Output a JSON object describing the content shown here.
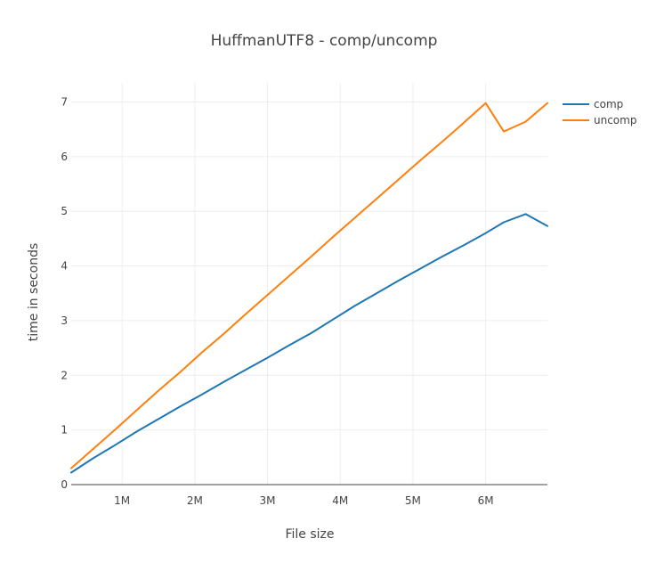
{
  "chart_data": {
    "type": "line",
    "title": "HuffmanUTF8 - comp/uncomp",
    "xlabel": "File size",
    "ylabel": "time in seconds",
    "xlim": [
      300000,
      6850000
    ],
    "ylim": [
      0,
      7.35
    ],
    "grid": true,
    "legend_position": "top-right",
    "x_ticks": [
      {
        "value": 1000000,
        "label": "1M"
      },
      {
        "value": 2000000,
        "label": "2M"
      },
      {
        "value": 3000000,
        "label": "3M"
      },
      {
        "value": 4000000,
        "label": "4M"
      },
      {
        "value": 5000000,
        "label": "5M"
      },
      {
        "value": 6000000,
        "label": "6M"
      }
    ],
    "y_ticks": [
      {
        "value": 0,
        "label": "0"
      },
      {
        "value": 1,
        "label": "1"
      },
      {
        "value": 2,
        "label": "2"
      },
      {
        "value": 3,
        "label": "3"
      },
      {
        "value": 4,
        "label": "4"
      },
      {
        "value": 5,
        "label": "5"
      },
      {
        "value": 6,
        "label": "6"
      },
      {
        "value": 7,
        "label": "7"
      }
    ],
    "x": [
      300000,
      600000,
      900000,
      1200000,
      1500000,
      1800000,
      2100000,
      2400000,
      2700000,
      3000000,
      3300000,
      3600000,
      3900000,
      4200000,
      4500000,
      4800000,
      5100000,
      5400000,
      5700000,
      6000000,
      6250000,
      6550000,
      6850000
    ],
    "series": [
      {
        "name": "comp",
        "color": "#1f77b4",
        "values": [
          0.22,
          0.48,
          0.72,
          0.97,
          1.2,
          1.43,
          1.65,
          1.88,
          2.1,
          2.32,
          2.55,
          2.77,
          3.02,
          3.27,
          3.5,
          3.73,
          3.95,
          4.17,
          4.38,
          4.6,
          4.8,
          4.95,
          4.73
        ]
      },
      {
        "name": "uncomp",
        "color": "#ff7f0e",
        "values": [
          0.3,
          0.65,
          1.0,
          1.36,
          1.72,
          2.06,
          2.42,
          2.76,
          3.12,
          3.47,
          3.82,
          4.17,
          4.53,
          4.88,
          5.23,
          5.58,
          5.93,
          6.27,
          6.62,
          6.98,
          6.46,
          6.64,
          6.98
        ]
      }
    ]
  }
}
